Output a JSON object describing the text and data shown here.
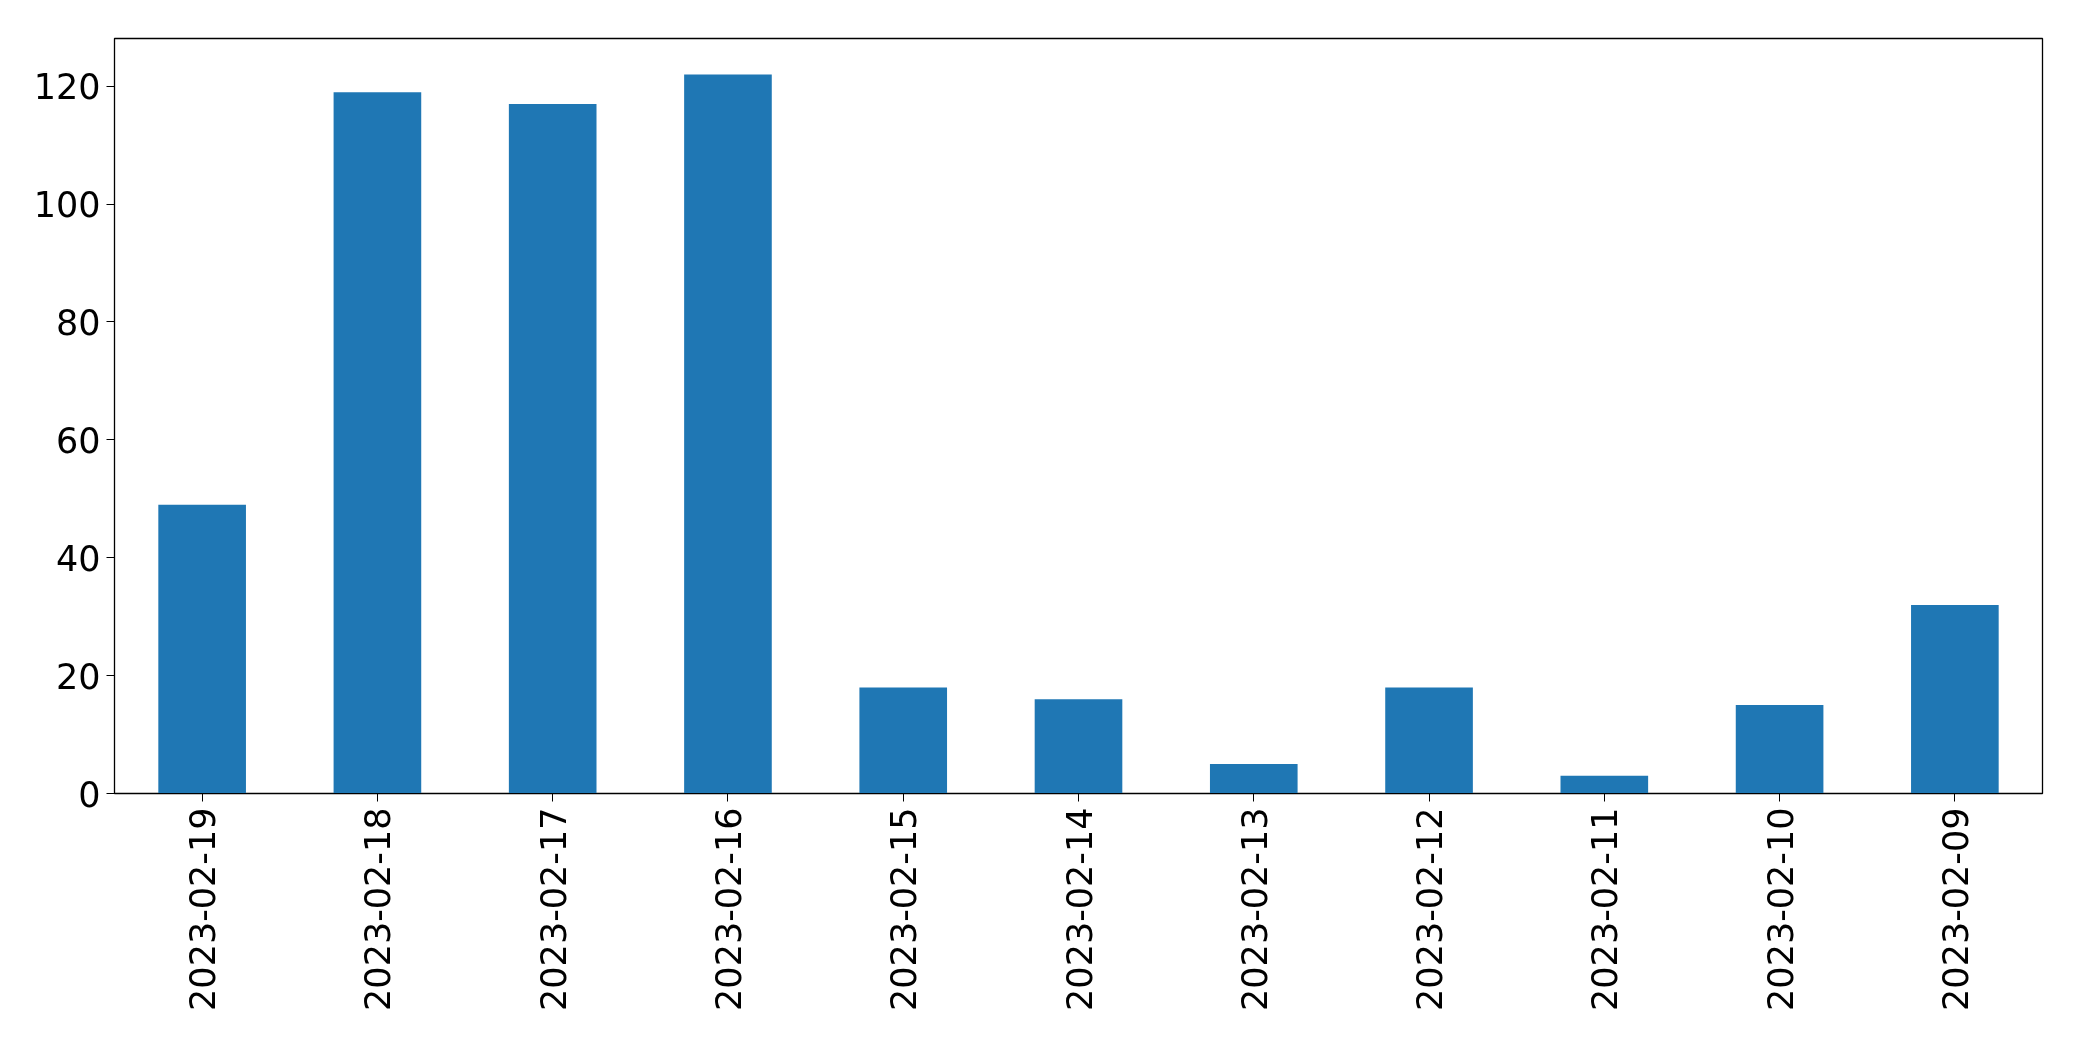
{
  "chart_data": {
    "type": "bar",
    "categories": [
      "2023-02-19",
      "2023-02-18",
      "2023-02-17",
      "2023-02-16",
      "2023-02-15",
      "2023-02-14",
      "2023-02-13",
      "2023-02-12",
      "2023-02-11",
      "2023-02-10",
      "2023-02-09"
    ],
    "values": [
      49,
      119,
      117,
      122,
      18,
      16,
      5,
      18,
      3,
      15,
      32
    ],
    "color": "#1f77b4",
    "ylim": [
      0,
      128.1
    ],
    "yticks": [
      0,
      20,
      40,
      60,
      80,
      100,
      120
    ]
  }
}
